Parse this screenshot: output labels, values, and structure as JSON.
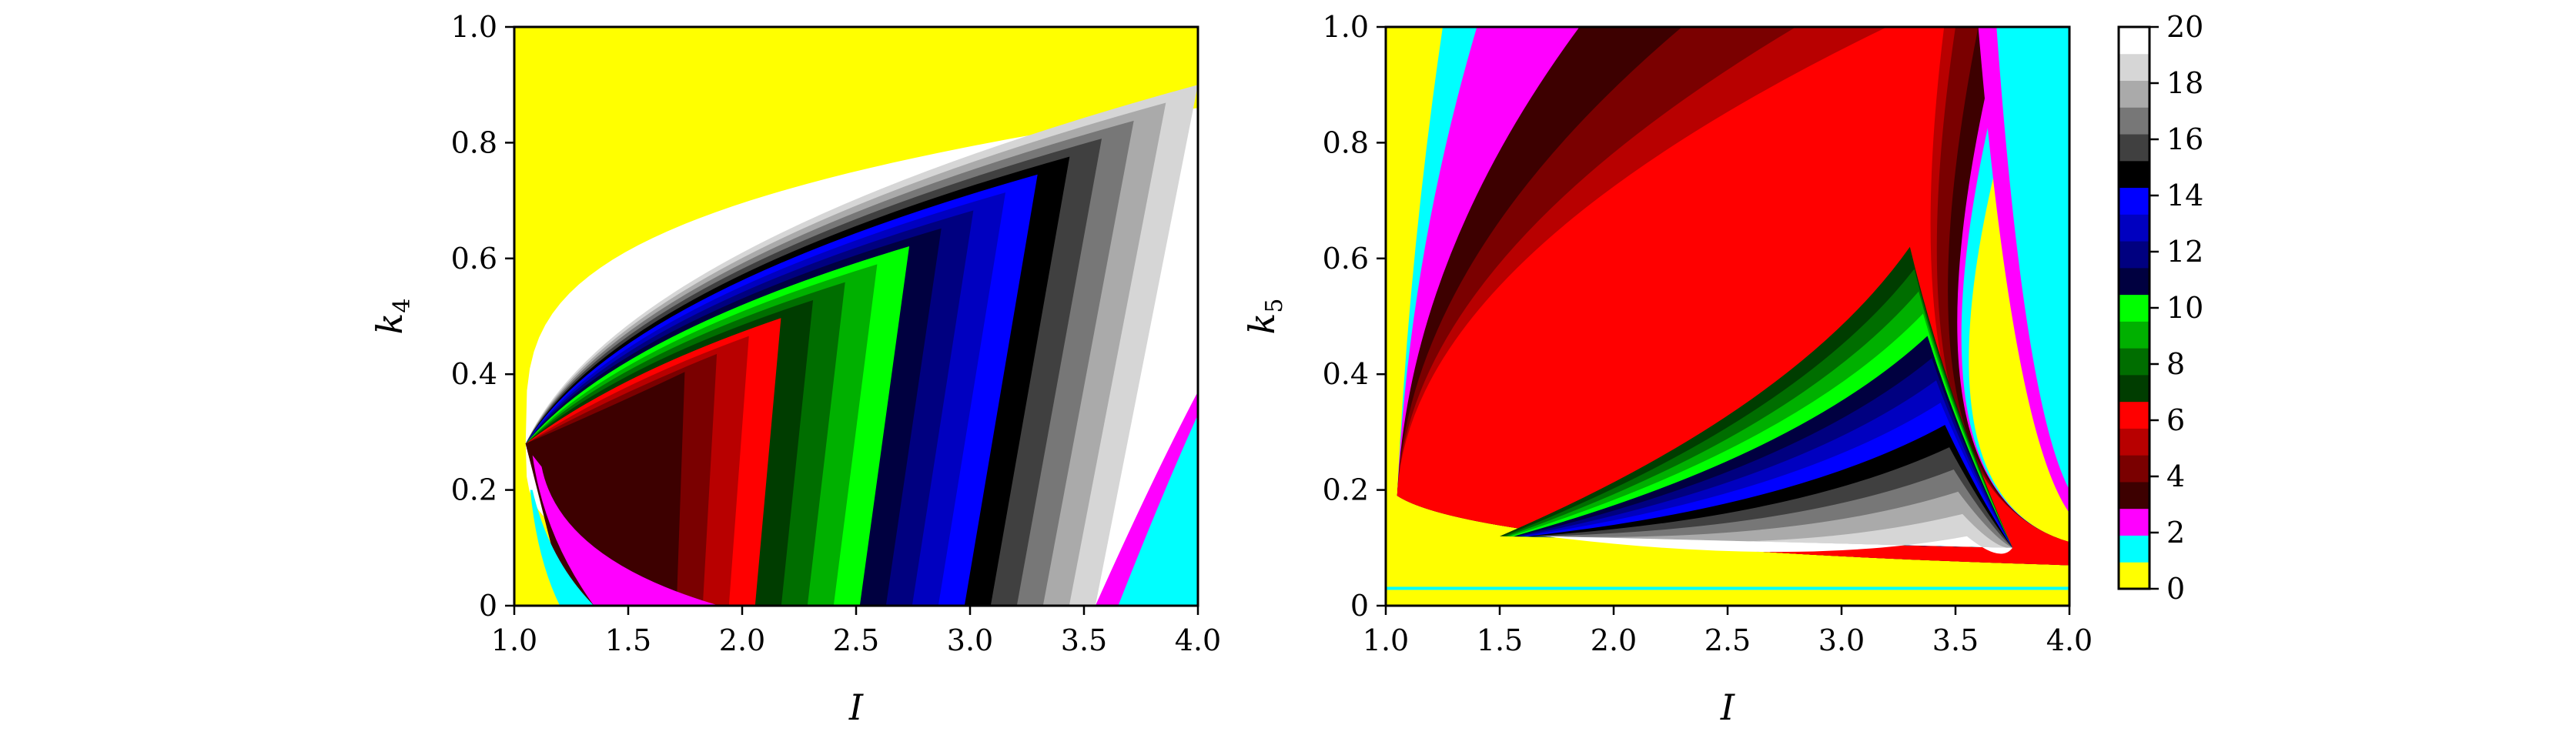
{
  "chart_data": [
    {
      "type": "heatmap",
      "panel": "left",
      "title": "",
      "xlabel": "I",
      "ylabel": "k",
      "ylabel_subscript": "4",
      "xlim": [
        1.0,
        4.0
      ],
      "ylim": [
        0,
        1.0
      ],
      "xticks": [
        "1.0",
        "1.5",
        "2.0",
        "2.5",
        "3.0",
        "3.5",
        "4.0"
      ],
      "yticks": [
        "0",
        "0.2",
        "0.4",
        "0.6",
        "0.8",
        "1.0"
      ],
      "regions": {
        "background_value": 0,
        "boundary_vertex": [
          1.05,
          0.28
        ],
        "boundary_top_end": [
          4.0,
          0.86
        ],
        "boundary_bottom_end": [
          2.45,
          0.0
        ],
        "band_sequence": [
          1,
          2,
          3,
          4,
          5,
          6,
          7,
          8,
          9,
          10,
          11,
          12,
          13,
          14,
          15,
          16,
          17,
          18,
          19,
          20
        ],
        "right_edge_band_values": [
          2,
          1
        ]
      }
    },
    {
      "type": "heatmap",
      "panel": "right",
      "title": "",
      "xlabel": "I",
      "ylabel": "k",
      "ylabel_subscript": "5",
      "xlim": [
        1.0,
        4.0
      ],
      "ylim": [
        0,
        1.0
      ],
      "xticks": [
        "1.0",
        "1.5",
        "2.0",
        "2.5",
        "3.0",
        "3.5",
        "4.0"
      ],
      "yticks": [
        "0",
        "0.2",
        "0.4",
        "0.6",
        "0.8",
        "1.0"
      ],
      "regions": {
        "background_value": 0,
        "cusp_point": [
          1.05,
          0.19
        ],
        "outer_band_values": [
          1,
          2,
          3,
          4,
          5,
          6
        ],
        "inner_band_values": [
          7,
          8,
          9,
          10,
          11,
          12,
          13,
          14,
          15,
          16,
          17,
          18,
          19,
          20
        ],
        "right_edge_band_values": [
          2,
          1
        ]
      }
    }
  ],
  "colorbar": {
    "min": 0,
    "max": 20,
    "ticks": [
      "0",
      "2",
      "4",
      "6",
      "8",
      "10",
      "12",
      "14",
      "16",
      "18",
      "20"
    ],
    "colors": [
      "#ffff00",
      "#00ffff",
      "#ff00ff",
      "#3d0000",
      "#7a0000",
      "#b80000",
      "#ff0000",
      "#003d00",
      "#006e00",
      "#00b000",
      "#00ff00",
      "#000040",
      "#000080",
      "#0000c0",
      "#0000ff",
      "#000000",
      "#404040",
      "#777777",
      "#aaaaaa",
      "#d6d6d6",
      "#ffffff"
    ]
  }
}
